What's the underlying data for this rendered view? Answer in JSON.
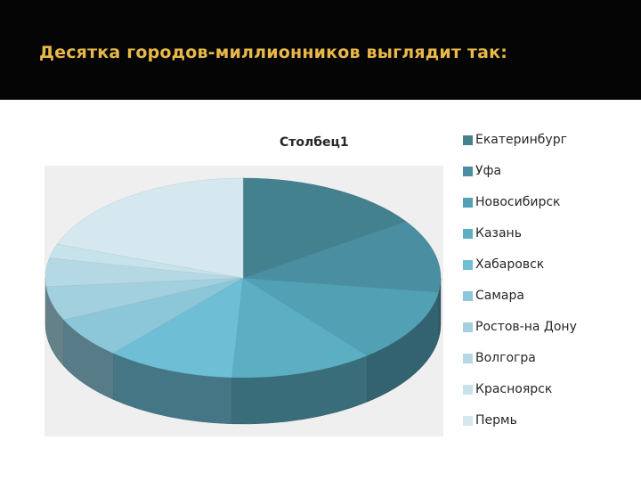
{
  "slide": {
    "title": "Десятка городов-миллионников выглядит так:"
  },
  "colors": {
    "title_bar": "#050505",
    "title_text": "#e8b94a",
    "plot_background": "#efefef"
  },
  "chart_data": {
    "type": "pie",
    "title": "Столбец1",
    "style": "3d-exploded-none",
    "legend_position": "right",
    "categories": [
      "Екатеринбург",
      "Уфа",
      "Новосибирск",
      "Казань",
      "Хабаровск",
      "Самара",
      "Ростов-на Дону",
      "Волгогра",
      "Красноярск",
      "Пермь"
    ],
    "values": [
      15.4,
      11.9,
      11.9,
      11.7,
      10.5,
      6.7,
      5.5,
      4.6,
      2.3,
      19.5
    ],
    "colors": [
      "#44818f",
      "#4a8ea1",
      "#52a0b4",
      "#5cafc3",
      "#6ebed6",
      "#8cc7d9",
      "#a2d0de",
      "#b5d9e4",
      "#c6e2ea",
      "#d5e8f0"
    ]
  }
}
